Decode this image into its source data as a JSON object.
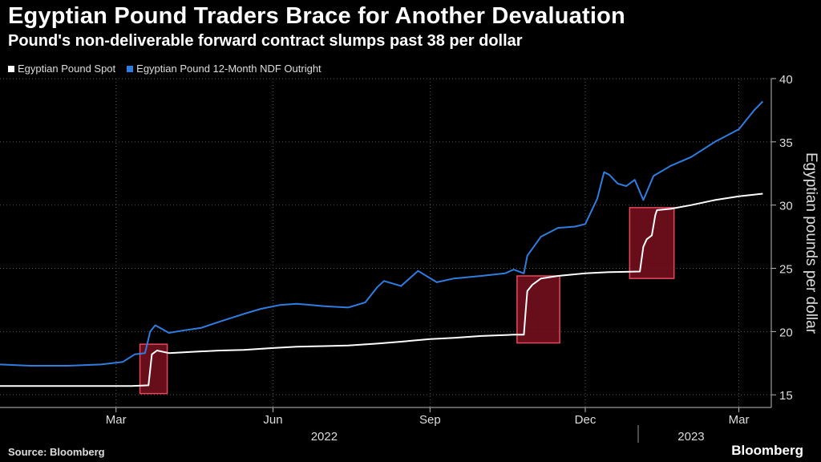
{
  "header": {
    "title": "Egyptian Pound Traders Brace for Another Devaluation",
    "subtitle": "Pound's non-deliverable forward contract slumps past 38 per dollar"
  },
  "footer": {
    "source": "Source: Bloomberg",
    "brand": "Bloomberg"
  },
  "colors": {
    "background": "#000000",
    "spot": "#ffffff",
    "ndf": "#2f7de1",
    "highlight_fill": "#7a0f1e",
    "highlight_stroke": "#e8485c"
  },
  "chart_data": {
    "type": "line",
    "ylabel": "Egyptian pounds per dollar",
    "ylim": [
      14,
      40
    ],
    "y_ticks": [
      15,
      20,
      25,
      30,
      35,
      40
    ],
    "x_range": [
      "2021-12-23",
      "2023-03-20"
    ],
    "x_ticks": [
      {
        "date": "2022-03-01",
        "label": "Mar"
      },
      {
        "date": "2022-06-01",
        "label": "Jun"
      },
      {
        "date": "2022-09-01",
        "label": "Sep"
      },
      {
        "date": "2022-12-01",
        "label": "Dec"
      },
      {
        "date": "2023-03-01",
        "label": "Mar"
      }
    ],
    "year_labels": [
      {
        "date": "2022-07-01",
        "label": "2022"
      },
      {
        "date": "2023-02-01",
        "label": "2023"
      }
    ],
    "year_divider": "2023-01-01",
    "grid": true,
    "legend": "top-left",
    "series": [
      {
        "name": "Egyptian Pound Spot",
        "color": "#ffffff",
        "points": [
          [
            "2021-12-23",
            15.7
          ],
          [
            "2022-01-15",
            15.7
          ],
          [
            "2022-02-10",
            15.7
          ],
          [
            "2022-03-10",
            15.7
          ],
          [
            "2022-03-20",
            15.75
          ],
          [
            "2022-03-22",
            18.2
          ],
          [
            "2022-03-25",
            18.5
          ],
          [
            "2022-04-01",
            18.3
          ],
          [
            "2022-04-15",
            18.4
          ],
          [
            "2022-05-01",
            18.5
          ],
          [
            "2022-05-15",
            18.55
          ],
          [
            "2022-06-01",
            18.7
          ],
          [
            "2022-06-15",
            18.8
          ],
          [
            "2022-07-01",
            18.85
          ],
          [
            "2022-07-15",
            18.9
          ],
          [
            "2022-08-01",
            19.05
          ],
          [
            "2022-08-15",
            19.2
          ],
          [
            "2022-09-01",
            19.4
          ],
          [
            "2022-09-15",
            19.5
          ],
          [
            "2022-10-01",
            19.65
          ],
          [
            "2022-10-20",
            19.75
          ],
          [
            "2022-10-26",
            19.75
          ],
          [
            "2022-10-27",
            21.5
          ],
          [
            "2022-10-28",
            23.2
          ],
          [
            "2022-10-31",
            23.7
          ],
          [
            "2022-11-05",
            24.2
          ],
          [
            "2022-11-15",
            24.4
          ],
          [
            "2022-12-01",
            24.6
          ],
          [
            "2022-12-15",
            24.7
          ],
          [
            "2023-01-02",
            24.75
          ],
          [
            "2023-01-04",
            26.7
          ],
          [
            "2023-01-06",
            27.3
          ],
          [
            "2023-01-09",
            27.6
          ],
          [
            "2023-01-11",
            29.2
          ],
          [
            "2023-01-12",
            29.6
          ],
          [
            "2023-01-20",
            29.7
          ],
          [
            "2023-02-01",
            30.0
          ],
          [
            "2023-02-15",
            30.4
          ],
          [
            "2023-03-01",
            30.7
          ],
          [
            "2023-03-15",
            30.9
          ]
        ]
      },
      {
        "name": "Egyptian Pound 12-Month NDF Outright",
        "color": "#2f7de1",
        "points": [
          [
            "2021-12-23",
            17.4
          ],
          [
            "2022-01-10",
            17.3
          ],
          [
            "2022-02-01",
            17.3
          ],
          [
            "2022-02-20",
            17.4
          ],
          [
            "2022-03-05",
            17.6
          ],
          [
            "2022-03-12",
            18.2
          ],
          [
            "2022-03-18",
            18.3
          ],
          [
            "2022-03-21",
            20.0
          ],
          [
            "2022-03-24",
            20.5
          ],
          [
            "2022-04-01",
            19.9
          ],
          [
            "2022-04-10",
            20.1
          ],
          [
            "2022-04-20",
            20.3
          ],
          [
            "2022-05-01",
            20.8
          ],
          [
            "2022-05-15",
            21.4
          ],
          [
            "2022-05-25",
            21.8
          ],
          [
            "2022-06-05",
            22.1
          ],
          [
            "2022-06-15",
            22.2
          ],
          [
            "2022-07-01",
            22.0
          ],
          [
            "2022-07-15",
            21.9
          ],
          [
            "2022-07-25",
            22.3
          ],
          [
            "2022-08-01",
            23.5
          ],
          [
            "2022-08-05",
            24.0
          ],
          [
            "2022-08-15",
            23.6
          ],
          [
            "2022-08-25",
            24.8
          ],
          [
            "2022-09-05",
            23.9
          ],
          [
            "2022-09-15",
            24.2
          ],
          [
            "2022-10-01",
            24.4
          ],
          [
            "2022-10-15",
            24.6
          ],
          [
            "2022-10-20",
            24.9
          ],
          [
            "2022-10-26",
            24.6
          ],
          [
            "2022-10-28",
            26.0
          ],
          [
            "2022-11-05",
            27.5
          ],
          [
            "2022-11-15",
            28.2
          ],
          [
            "2022-11-25",
            28.3
          ],
          [
            "2022-12-01",
            28.5
          ],
          [
            "2022-12-08",
            30.5
          ],
          [
            "2022-12-12",
            32.6
          ],
          [
            "2022-12-15",
            32.4
          ],
          [
            "2022-12-20",
            31.7
          ],
          [
            "2022-12-25",
            31.5
          ],
          [
            "2022-12-30",
            32.0
          ],
          [
            "2023-01-04",
            30.4
          ],
          [
            "2023-01-10",
            32.3
          ],
          [
            "2023-01-20",
            33.1
          ],
          [
            "2023-02-01",
            33.8
          ],
          [
            "2023-02-15",
            35.0
          ],
          [
            "2023-03-01",
            36.0
          ],
          [
            "2023-03-10",
            37.5
          ],
          [
            "2023-03-15",
            38.2
          ]
        ]
      }
    ],
    "highlights": [
      {
        "x0": "2022-03-15",
        "x1": "2022-03-31",
        "y0": 15.1,
        "y1": 19.0
      },
      {
        "x0": "2022-10-22",
        "x1": "2022-11-16",
        "y0": 19.1,
        "y1": 24.4
      },
      {
        "x0": "2022-12-27",
        "x1": "2023-01-22",
        "y0": 24.2,
        "y1": 29.8
      }
    ]
  }
}
